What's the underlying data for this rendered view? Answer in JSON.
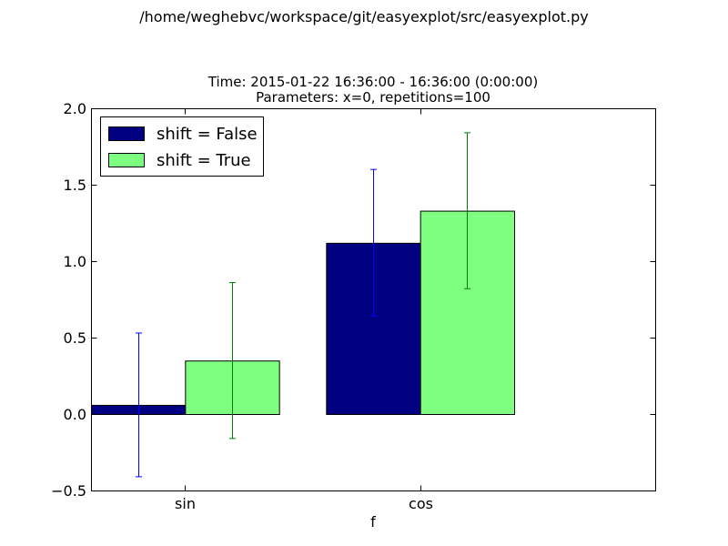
{
  "figure": {
    "suptitle": "/home/weghebvc/workspace/git/easyexplot/src/easyexplot.py"
  },
  "chart_data": {
    "type": "bar",
    "title_lines": [
      "Time: 2015-01-22 16:36:00 - 16:36:00 (0:00:00)",
      "Parameters: x=0, repetitions=100"
    ],
    "xlabel": "f",
    "ylabel": "",
    "categories": [
      "sin",
      "cos"
    ],
    "ylim": [
      -0.5,
      2.0
    ],
    "yticks": [
      -0.5,
      0.0,
      0.5,
      1.0,
      1.5,
      2.0
    ],
    "ytick_labels": [
      "−0.5",
      "0.0",
      "0.5",
      "1.0",
      "1.5",
      "2.0"
    ],
    "grid": false,
    "legend_position": "top-left",
    "series": [
      {
        "name": "shift = False",
        "color": "#000080",
        "error_color": "#0000ff",
        "values": [
          0.06,
          1.12
        ],
        "error": [
          0.47,
          0.48
        ]
      },
      {
        "name": "shift = True",
        "color": "#7fff7f",
        "error_color": "#008000",
        "values": [
          0.35,
          1.33
        ],
        "error": [
          0.51,
          0.51
        ]
      }
    ]
  }
}
